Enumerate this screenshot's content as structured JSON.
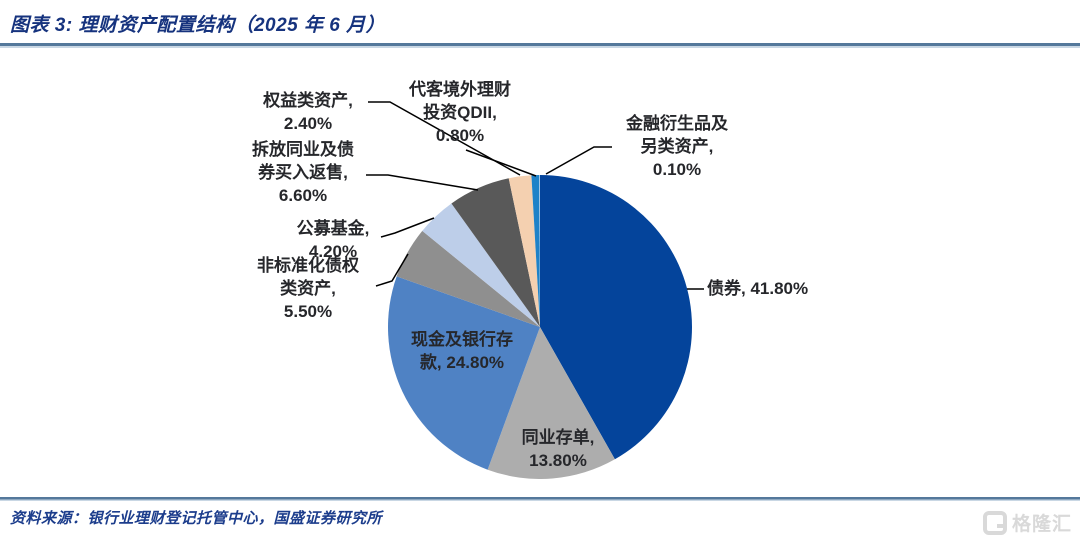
{
  "header": {
    "title": "图表 3:  理财资产配置结构（2025 年 6 月）"
  },
  "footer": {
    "source": "资料来源：银行业理财登记托管中心，国盛证券研究所"
  },
  "watermark": {
    "icon": "G",
    "text": "格隆汇"
  },
  "colors": {
    "title_text": "#16337E",
    "source_text": "#1C3D8C",
    "rule_dark": "#54789B",
    "rule_light": "#C9D7E4",
    "label_text": "#26272B",
    "leader_line": "#000000",
    "watermark_gray": "#D9D9D9"
  },
  "chart_data": {
    "type": "pie",
    "title": "理财资产配置结构（2025年6月）",
    "unit": "%",
    "start_angle_deg": 0,
    "direction": "clockwise",
    "legend_position": "none",
    "total": 100.0,
    "slices": [
      {
        "name": "债券",
        "value": 41.8,
        "color": "#04449B",
        "label": "债券, 41.80%"
      },
      {
        "name": "同业存单",
        "value": 13.8,
        "color": "#ADADAD",
        "label": "同业存单,\n13.80%"
      },
      {
        "name": "现金及银行存款",
        "value": 24.8,
        "color": "#4F82C4",
        "label": "现金及银行存\n款, 24.80%"
      },
      {
        "name": "非标准化债权类资产",
        "value": 5.5,
        "color": "#8F8F8F",
        "label": "非标准化债权\n类资产,\n5.50%"
      },
      {
        "name": "公募基金",
        "value": 4.2,
        "color": "#BDCEE9",
        "label": "公募基金,\n4.20%"
      },
      {
        "name": "拆放同业及债券买入返售",
        "value": 6.6,
        "color": "#595959",
        "label": "拆放同业及债\n券买入返售,\n6.60%"
      },
      {
        "name": "权益类资产",
        "value": 2.4,
        "color": "#F4D0B0",
        "label": "权益类资产,\n2.40%"
      },
      {
        "name": "代客境外理财投资QDII",
        "value": 0.8,
        "color": "#1E82C8",
        "label": "代客境外理财\n投资QDII,\n0.80%"
      },
      {
        "name": "金融衍生品及另类资产",
        "value": 0.1,
        "color": "#9DC3E6",
        "label": "金融衍生品及\n另类资产,\n0.10%"
      }
    ]
  }
}
